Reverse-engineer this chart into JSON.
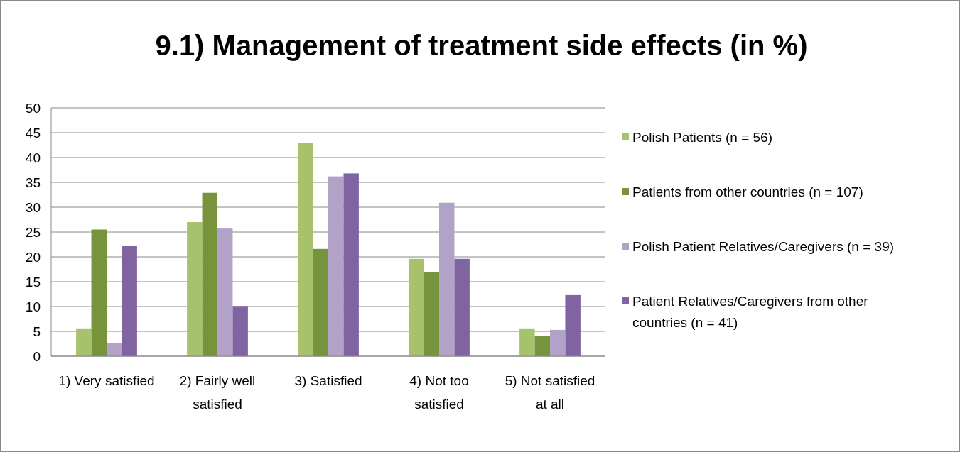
{
  "chart_data": {
    "type": "bar",
    "title": "9.1) Management of treatment side effects (in %)",
    "categories": [
      "1) Very satisfied",
      "2) Fairly well satisfied",
      "3) Satisfied",
      "4) Not too satisfied",
      "5) Not satisfied at all"
    ],
    "series": [
      {
        "name": "Polish Patients (n = 56)",
        "color": "#a6c26a",
        "values": [
          5.6,
          27.0,
          43.0,
          19.6,
          5.6
        ]
      },
      {
        "name": "Patients from other countries (n = 107)",
        "color": "#77933c",
        "values": [
          25.5,
          32.9,
          21.6,
          16.9,
          4.0
        ]
      },
      {
        "name": "Polish Patient Relatives/Caregivers (n = 39)",
        "color": "#b3a2c7",
        "values": [
          2.6,
          25.7,
          36.2,
          30.9,
          5.3
        ]
      },
      {
        "name": "Patient Relatives/Caregivers from other countries (n = 41)",
        "color": "#8064a2",
        "values": [
          22.2,
          10.1,
          36.8,
          19.6,
          12.3
        ]
      }
    ],
    "ylim": [
      0,
      50
    ],
    "yticks": [
      0,
      5,
      10,
      15,
      20,
      25,
      30,
      35,
      40,
      45,
      50
    ],
    "grid": "y",
    "legend": "right"
  }
}
